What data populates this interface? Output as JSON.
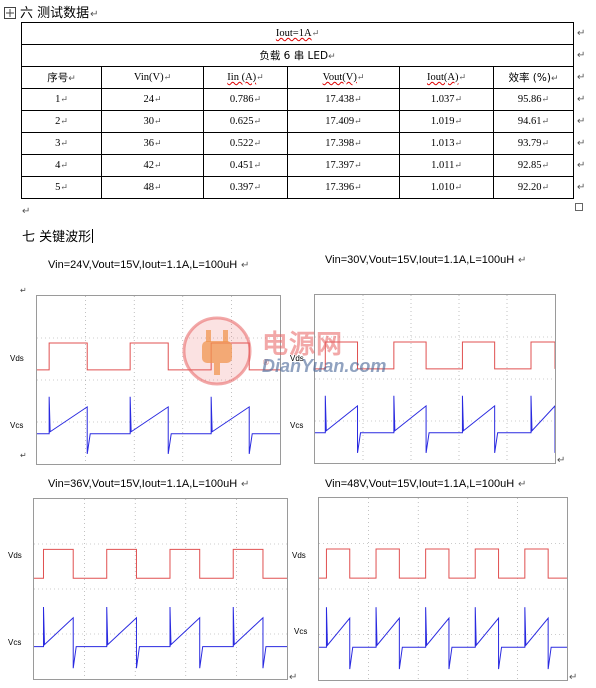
{
  "section6": {
    "title": "六 测试数据"
  },
  "table": {
    "title_row": "Iout=1A",
    "subtitle_row": "负载 6 串 LED",
    "headers": [
      "序号",
      "Vin(V)",
      "Iin (A)",
      "Vout(V)",
      "Iout(A)",
      "效率 (%)"
    ],
    "rows": [
      [
        "1",
        "24",
        "0.786",
        "17.438",
        "1.037",
        "95.86"
      ],
      [
        "2",
        "30",
        "0.625",
        "17.409",
        "1.019",
        "94.61"
      ],
      [
        "3",
        "36",
        "0.522",
        "17.398",
        "1.013",
        "93.79"
      ],
      [
        "4",
        "42",
        "0.451",
        "17.397",
        "1.011",
        "92.85"
      ],
      [
        "5",
        "48",
        "0.397",
        "17.396",
        "1.010",
        "92.20"
      ]
    ]
  },
  "section7": {
    "title": "七 关键波形"
  },
  "waveforms": [
    {
      "caption": "Vin=24V,Vout=15V,Iout=1.1A,L=100uH",
      "vds_label": "Vds",
      "vcs_label": "Vcs",
      "periods": 3
    },
    {
      "caption": "Vin=30V,Vout=15V,Iout=1.1A,L=100uH",
      "vds_label": "Vds",
      "vcs_label": "Vcs",
      "periods": 3.5
    },
    {
      "caption": "Vin=36V,Vout=15V,Iout=1.1A,L=100uH",
      "vds_label": "Vds",
      "vcs_label": "Vcs",
      "periods": 4
    },
    {
      "caption": "Vin=48V,Vout=15V,Iout=1.1A,L=100uH",
      "vds_label": "Vds",
      "vcs_label": "Vcs",
      "periods": 5
    }
  ],
  "watermark": {
    "cn": "电源网",
    "en": "DianYuan.com"
  },
  "colors": {
    "vds": "#e05050",
    "vcs": "#2a2ae0",
    "grid": "#9a9a9a",
    "watermark": "#e86060"
  }
}
